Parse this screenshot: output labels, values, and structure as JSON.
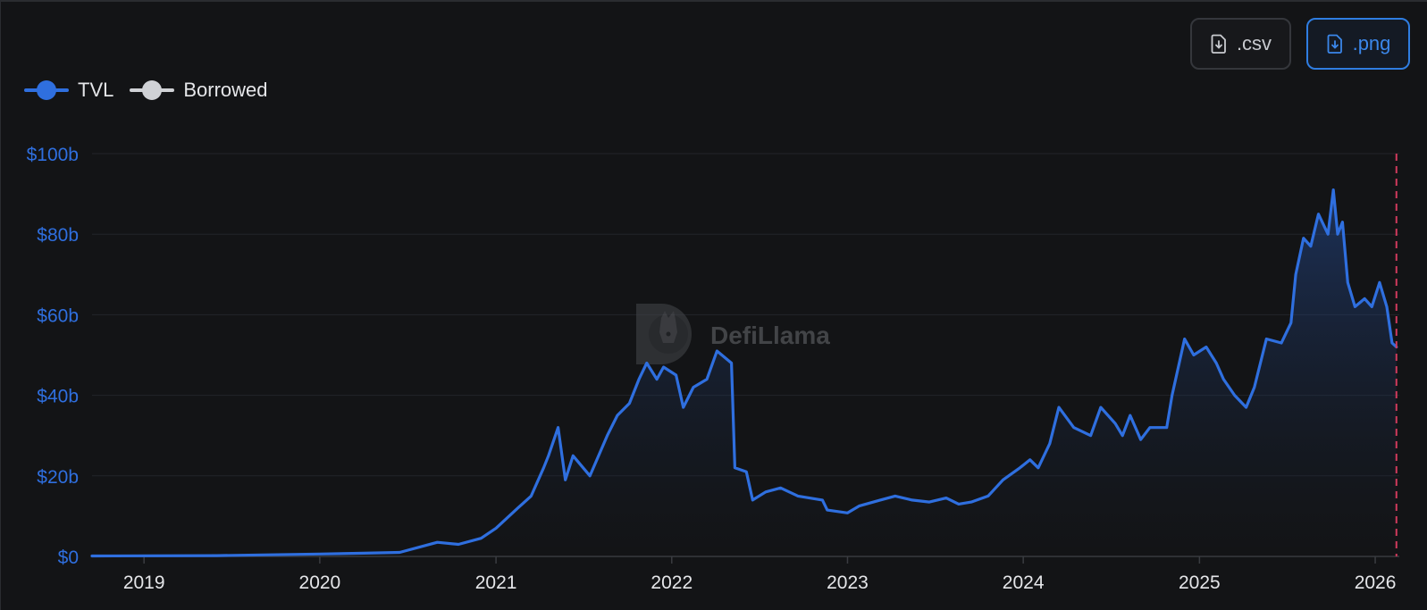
{
  "toolbar": {
    "csv_label": ".csv",
    "png_label": ".png"
  },
  "colors": {
    "background": "#131416",
    "tvl": "#2f6fdf",
    "borrowed": "#d0d2d6",
    "today_marker": "#d03a5c",
    "ytick": "#2f6fdf",
    "xtick": "#e5e6e9"
  },
  "watermark": {
    "text": "DefiLlama"
  },
  "chart_data": {
    "type": "area",
    "legend": [
      "TVL",
      "Borrowed"
    ],
    "legend_position": "top-left",
    "grid": true,
    "y_ticks": [
      "$0",
      "$20b",
      "$40b",
      "$60b",
      "$80b",
      "$100b"
    ],
    "y_tick_values": [
      0,
      20,
      40,
      60,
      80,
      100
    ],
    "ylim": [
      0,
      100
    ],
    "x_ticks": [
      "2019",
      "2020",
      "2021",
      "2022",
      "2023",
      "2024",
      "2025",
      "2026"
    ],
    "xlim": [
      "2018-09-15",
      "2026-02-20"
    ],
    "today_marker": "2026-02-14",
    "series": [
      {
        "name": "TVL",
        "unit": "billion USD",
        "points": [
          [
            "2018-09-15",
            0.1
          ],
          [
            "2019-06-01",
            0.2
          ],
          [
            "2020-01-01",
            0.6
          ],
          [
            "2020-04-01",
            0.8
          ],
          [
            "2020-06-15",
            1.0
          ],
          [
            "2020-08-01",
            2.5
          ],
          [
            "2020-09-01",
            3.5
          ],
          [
            "2020-10-15",
            3.0
          ],
          [
            "2020-12-01",
            4.5
          ],
          [
            "2021-01-01",
            7.0
          ],
          [
            "2021-02-15",
            12.0
          ],
          [
            "2021-03-15",
            15.0
          ],
          [
            "2021-04-10",
            22.0
          ],
          [
            "2021-04-20",
            25.0
          ],
          [
            "2021-05-10",
            32.0
          ],
          [
            "2021-05-25",
            19.0
          ],
          [
            "2021-06-10",
            25.0
          ],
          [
            "2021-07-15",
            20.0
          ],
          [
            "2021-08-20",
            30.0
          ],
          [
            "2021-09-10",
            35.0
          ],
          [
            "2021-10-05",
            38.0
          ],
          [
            "2021-10-25",
            44.0
          ],
          [
            "2021-11-10",
            48.0
          ],
          [
            "2021-12-01",
            44.0
          ],
          [
            "2021-12-15",
            47.0
          ],
          [
            "2022-01-10",
            45.0
          ],
          [
            "2022-01-25",
            37.0
          ],
          [
            "2022-02-15",
            42.0
          ],
          [
            "2022-03-15",
            44.0
          ],
          [
            "2022-04-05",
            51.0
          ],
          [
            "2022-04-25",
            49.0
          ],
          [
            "2022-05-05",
            48.0
          ],
          [
            "2022-05-12",
            22.0
          ],
          [
            "2022-06-05",
            21.0
          ],
          [
            "2022-06-18",
            14.0
          ],
          [
            "2022-07-15",
            16.0
          ],
          [
            "2022-08-15",
            17.0
          ],
          [
            "2022-09-20",
            15.0
          ],
          [
            "2022-11-10",
            14.0
          ],
          [
            "2022-11-20",
            11.5
          ],
          [
            "2023-01-01",
            10.8
          ],
          [
            "2023-01-25",
            12.5
          ],
          [
            "2023-03-10",
            14.0
          ],
          [
            "2023-04-10",
            15.0
          ],
          [
            "2023-05-15",
            14.0
          ],
          [
            "2023-06-20",
            13.5
          ],
          [
            "2023-07-25",
            14.5
          ],
          [
            "2023-08-20",
            13.0
          ],
          [
            "2023-09-15",
            13.5
          ],
          [
            "2023-10-20",
            15.0
          ],
          [
            "2023-11-20",
            19.0
          ],
          [
            "2023-12-25",
            22.0
          ],
          [
            "2024-01-15",
            24.0
          ],
          [
            "2024-02-01",
            22.0
          ],
          [
            "2024-02-25",
            28.0
          ],
          [
            "2024-03-15",
            37.0
          ],
          [
            "2024-04-15",
            32.0
          ],
          [
            "2024-05-20",
            30.0
          ],
          [
            "2024-06-10",
            37.0
          ],
          [
            "2024-07-10",
            33.0
          ],
          [
            "2024-07-25",
            30.0
          ],
          [
            "2024-08-10",
            35.0
          ],
          [
            "2024-09-01",
            29.0
          ],
          [
            "2024-09-20",
            32.0
          ],
          [
            "2024-10-25",
            32.0
          ],
          [
            "2024-11-05",
            40.0
          ],
          [
            "2024-12-01",
            54.0
          ],
          [
            "2024-12-20",
            50.0
          ],
          [
            "2025-01-15",
            52.0
          ],
          [
            "2025-02-05",
            48.0
          ],
          [
            "2025-02-20",
            44.0
          ],
          [
            "2025-03-15",
            40.0
          ],
          [
            "2025-04-08",
            37.0
          ],
          [
            "2025-04-25",
            42.0
          ],
          [
            "2025-05-20",
            54.0
          ],
          [
            "2025-06-20",
            53.0
          ],
          [
            "2025-07-10",
            58.0
          ],
          [
            "2025-07-20",
            70.0
          ],
          [
            "2025-08-05",
            79.0
          ],
          [
            "2025-08-20",
            77.0
          ],
          [
            "2025-09-05",
            85.0
          ],
          [
            "2025-09-25",
            80.0
          ],
          [
            "2025-10-06",
            91.0
          ],
          [
            "2025-10-15",
            80.0
          ],
          [
            "2025-10-25",
            83.0
          ],
          [
            "2025-11-05",
            68.0
          ],
          [
            "2025-11-20",
            62.0
          ],
          [
            "2025-12-10",
            64.0
          ],
          [
            "2025-12-25",
            62.0
          ],
          [
            "2026-01-10",
            68.0
          ],
          [
            "2026-01-25",
            62.0
          ],
          [
            "2026-02-05",
            53.0
          ],
          [
            "2026-02-14",
            52.0
          ]
        ]
      },
      {
        "name": "Borrowed",
        "unit": "billion USD",
        "points": []
      }
    ]
  }
}
